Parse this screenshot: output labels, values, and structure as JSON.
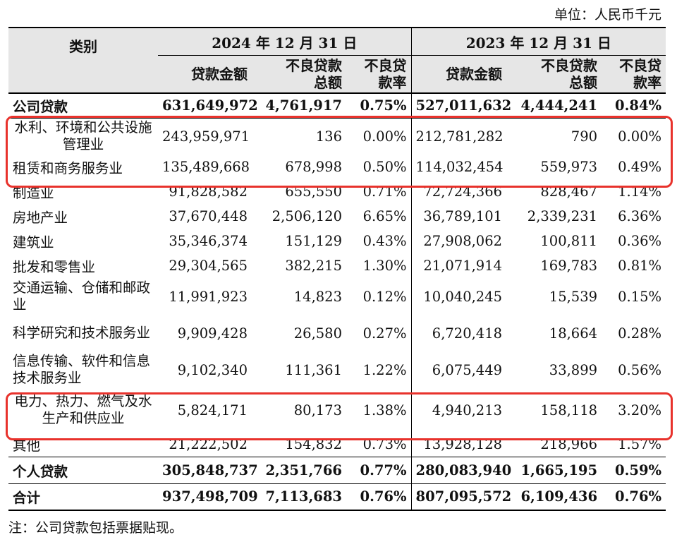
{
  "unit": "单位：人民币千元",
  "header": {
    "category": "类别",
    "group_2024": "2024 年 12 月 31 日",
    "group_2023": "2023 年 12 月 31 日",
    "col_loan_amount": "贷款金额",
    "col_npl_total": "不良贷款总额",
    "col_npl_ratio": "不良贷款率"
  },
  "rows": {
    "corporate": [
      "公司贷款",
      "631,649,972",
      "4,761,917",
      "0.75%",
      "527,011,632",
      "4,444,241",
      "0.84%"
    ],
    "water": [
      "水利、环境和公共设施管理业",
      "243,959,971",
      "136",
      "0.00%",
      "212,781,282",
      "790",
      "0.00%"
    ],
    "leasing": [
      "租赁和商务服务业",
      "135,489,668",
      "678,998",
      "0.50%",
      "114,032,454",
      "559,973",
      "0.49%"
    ],
    "manufacturing": [
      "制造业",
      "91,828,582",
      "655,550",
      "0.71%",
      "72,724,366",
      "828,467",
      "1.14%"
    ],
    "realestate": [
      "房地产业",
      "37,670,448",
      "2,506,120",
      "6.65%",
      "36,789,101",
      "2,339,231",
      "6.36%"
    ],
    "construction": [
      "建筑业",
      "35,346,374",
      "151,129",
      "0.43%",
      "27,908,062",
      "100,811",
      "0.36%"
    ],
    "wholesale": [
      "批发和零售业",
      "29,304,565",
      "382,215",
      "1.30%",
      "21,071,914",
      "169,783",
      "0.81%"
    ],
    "transport": [
      "交通运输、仓储和邮政业",
      "11,991,923",
      "14,823",
      "0.12%",
      "10,040,245",
      "15,539",
      "0.15%"
    ],
    "research": [
      "科学研究和技术服务业",
      "9,909,428",
      "26,580",
      "0.27%",
      "6,720,418",
      "18,664",
      "0.28%"
    ],
    "it": [
      "信息传输、软件和信息技术服务业",
      "9,102,340",
      "111,361",
      "1.22%",
      "6,075,449",
      "33,899",
      "0.56%"
    ],
    "utilities": [
      "电力、热力、燃气及水生产和供应业",
      "5,824,171",
      "80,173",
      "1.38%",
      "4,940,213",
      "158,118",
      "3.20%"
    ],
    "other": [
      "其他",
      "21,222,502",
      "154,832",
      "0.73%",
      "13,928,128",
      "218,966",
      "1.57%"
    ],
    "personal": [
      "个人贷款",
      "305,848,737",
      "2,351,766",
      "0.77%",
      "280,083,940",
      "1,665,195",
      "0.59%"
    ],
    "total": [
      "合计",
      "937,498,709",
      "7,113,683",
      "0.76%",
      "807,095,572",
      "6,109,436",
      "0.76%"
    ]
  },
  "note": "注：公司贷款包括票据贴现。",
  "highlight_color": "#e8322c"
}
